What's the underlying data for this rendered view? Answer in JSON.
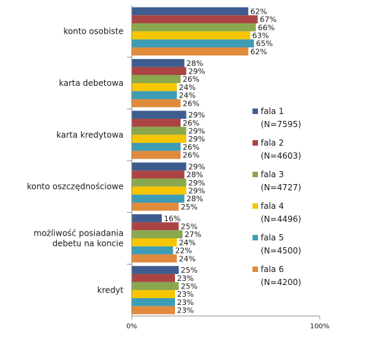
{
  "chart_data": {
    "type": "bar",
    "orientation": "horizontal",
    "title": "",
    "xlabel": "",
    "ylabel": "",
    "xlim": [
      0,
      100
    ],
    "x_ticks": [
      "0%",
      "100%"
    ],
    "grid": false,
    "legend_position": "right",
    "categories": [
      [
        "konto osobiste"
      ],
      [
        "karta debetowa"
      ],
      [
        "karta kredytowa"
      ],
      [
        "konto oszczędnościowe"
      ],
      [
        "możliwość posiadania",
        "debetu na koncie"
      ],
      [
        "kredyt"
      ]
    ],
    "series": [
      {
        "name": "fala 1",
        "sub": "(N=7595)",
        "color": "#3e5d8e",
        "values": [
          62,
          28,
          29,
          29,
          16,
          25
        ]
      },
      {
        "name": "fala 2",
        "sub": "(N=4603)",
        "color": "#ab4443",
        "values": [
          67,
          29,
          26,
          28,
          25,
          23
        ]
      },
      {
        "name": "fala 3",
        "sub": "(N=4727)",
        "color": "#8aa84e",
        "values": [
          66,
          26,
          29,
          29,
          27,
          25
        ]
      },
      {
        "name": "fala 4",
        "sub": "(N=4496)",
        "color": "#f7c600",
        "values": [
          63,
          24,
          29,
          29,
          24,
          23
        ]
      },
      {
        "name": "fala 5",
        "sub": "(N=4500)",
        "color": "#3e9db4",
        "values": [
          65,
          24,
          26,
          28,
          22,
          23
        ]
      },
      {
        "name": "fala 6",
        "sub": "(N=4200)",
        "color": "#e08a3c",
        "values": [
          62,
          26,
          26,
          25,
          24,
          23
        ]
      }
    ]
  }
}
